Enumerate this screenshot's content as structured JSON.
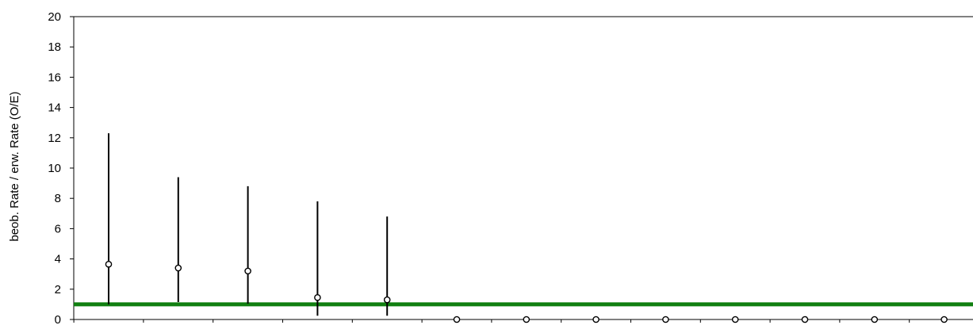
{
  "chart_data": {
    "type": "scatter",
    "subtype": "point-with-interval",
    "ylabel": "beob. Rate / erw. Rate (O/E)",
    "xlabel": "",
    "ylim": [
      0,
      20
    ],
    "yticks": [
      0,
      2,
      4,
      6,
      8,
      10,
      12,
      14,
      16,
      18,
      20
    ],
    "x": [
      1,
      2,
      3,
      4,
      5,
      6,
      7,
      8,
      9,
      10,
      11,
      12,
      13
    ],
    "series": [
      {
        "values": [
          3.65,
          3.4,
          3.2,
          1.45,
          1.3,
          0,
          0,
          0,
          0,
          0,
          0,
          0,
          0
        ],
        "lower": [
          1.0,
          1.15,
          1.05,
          0.25,
          0.25,
          0,
          0,
          0,
          0,
          0,
          0,
          0,
          0
        ],
        "upper": [
          12.3,
          9.4,
          8.8,
          7.8,
          6.8,
          0,
          0,
          0,
          0,
          0,
          0,
          0,
          0
        ]
      }
    ],
    "reference_line": {
      "value": 1,
      "color": "#107f10"
    },
    "colors": {
      "marker_fill": "#ffffff",
      "marker_stroke": "#000000",
      "interval": "#000000",
      "axis": "#000000"
    },
    "grid": false,
    "legend": "none"
  }
}
